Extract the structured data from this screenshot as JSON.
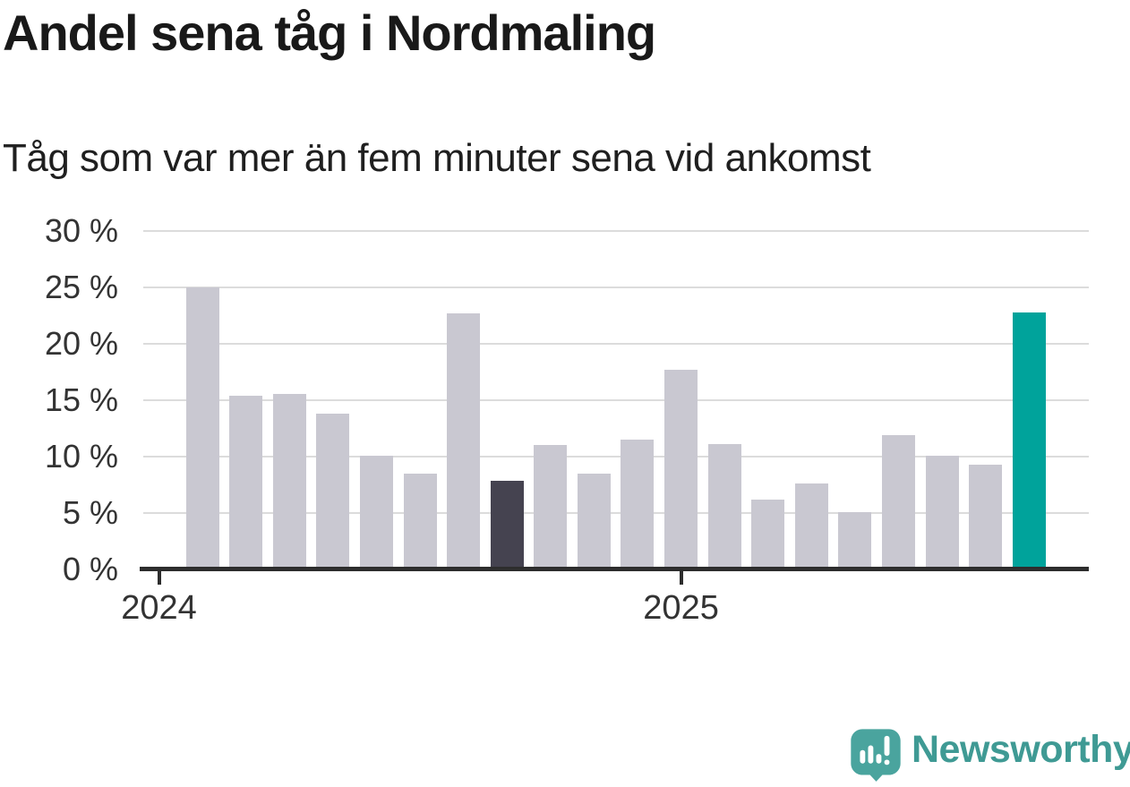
{
  "header": {
    "title": "Andel sena tåg i Nordmaling",
    "subtitle": "Tåg som var mer än fem minuter sena vid ankomst"
  },
  "chart_data": {
    "type": "bar",
    "title": "Andel sena tåg i Nordmaling",
    "subtitle": "Tåg som var mer än fem minuter sena vid ankomst",
    "unit": "%",
    "months": [
      "2024-02",
      "2024-03",
      "2024-04",
      "2024-05",
      "2024-06",
      "2024-07",
      "2024-08",
      "2024-09",
      "2024-10",
      "2024-11",
      "2024-12",
      "2025-01",
      "2025-02",
      "2025-03",
      "2025-04",
      "2025-05",
      "2025-06",
      "2025-07",
      "2025-08",
      "2025-09"
    ],
    "values": [
      25.0,
      15.4,
      15.6,
      13.8,
      10.1,
      8.5,
      22.7,
      7.9,
      11.0,
      8.5,
      11.5,
      17.7,
      11.1,
      6.2,
      7.6,
      5.1,
      11.9,
      10.1,
      9.3,
      22.8
    ],
    "ylim": [
      0,
      30
    ],
    "y_ticks": [
      0,
      5,
      10,
      15,
      20,
      25,
      30
    ],
    "y_tick_suffix": " %",
    "x_ticks": [
      {
        "label": "2024",
        "month_offset": 0
      },
      {
        "label": "2025",
        "month_offset": 12
      }
    ],
    "grid": true,
    "legend": false,
    "colors": {
      "default": "#c9c8d1",
      "compare_highlight": "#454350",
      "current_highlight": "#00a39b"
    },
    "highlight_compare_index": 7,
    "highlight_current_index": 19
  },
  "footer": {
    "brand": "Newsworthy",
    "brand_color": "#3f9a94",
    "logo_bubble_color": "#4aa49e"
  }
}
